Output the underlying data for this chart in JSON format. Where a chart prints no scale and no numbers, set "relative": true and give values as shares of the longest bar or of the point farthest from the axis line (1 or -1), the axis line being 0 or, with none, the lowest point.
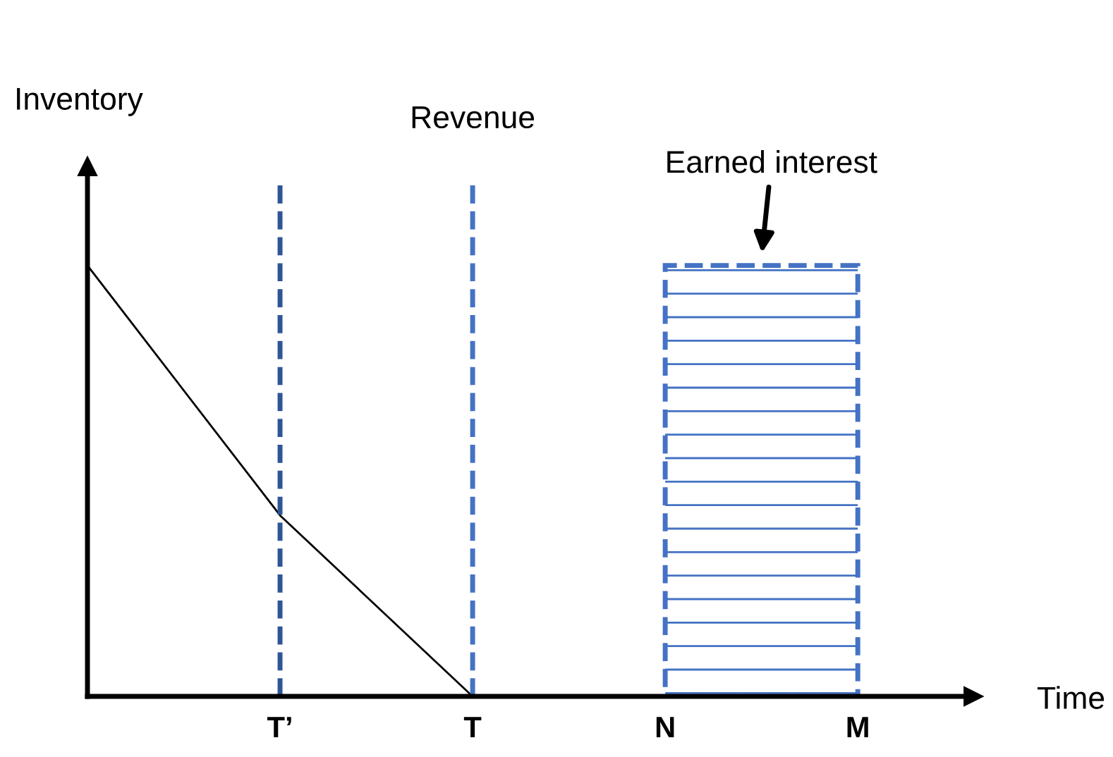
{
  "chart_data": {
    "type": "line",
    "relative": true,
    "xlabel": "Time",
    "ylabel": "Inventory",
    "categories": [
      null,
      "T’",
      "T",
      "N",
      "M"
    ],
    "series": [
      {
        "color": "#000000",
        "values": [
          1,
          0.42,
          0,
          null,
          null
        ]
      }
    ],
    "ref_lines": [
      {
        "axis": "x",
        "value": "T’",
        "color": "#2f5597",
        "line_style": "dashed"
      },
      {
        "axis": "x",
        "value": "T",
        "label": "Revenue",
        "color": "#4472c4",
        "line_style": "dashed"
      }
    ],
    "bands": [
      {
        "axis": "x",
        "from": "N",
        "to": "M",
        "label": "Earned interest",
        "color": "#4472c4"
      }
    ],
    "tick_labels": "x",
    "grid": false,
    "legend": false,
    "marker": "none",
    "line_style": "solid"
  }
}
